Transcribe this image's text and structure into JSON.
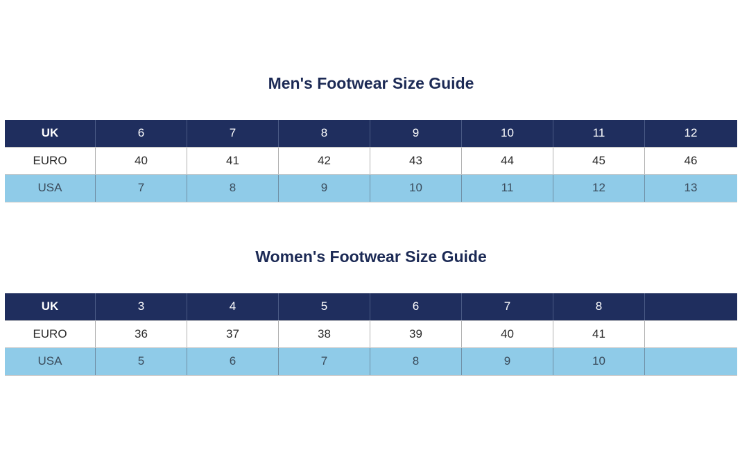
{
  "mens": {
    "title": "Men's Footwear Size Guide",
    "rows": [
      [
        "UK",
        "6",
        "7",
        "8",
        "9",
        "10",
        "11",
        "12"
      ],
      [
        "EURO",
        "40",
        "41",
        "42",
        "43",
        "44",
        "45",
        "46"
      ],
      [
        "USA",
        "7",
        "8",
        "9",
        "10",
        "11",
        "12",
        "13"
      ]
    ]
  },
  "womens": {
    "title": "Women's Footwear Size Guide",
    "rows": [
      [
        "UK",
        "3",
        "4",
        "5",
        "6",
        "7",
        "8"
      ],
      [
        "EURO",
        "36",
        "37",
        "38",
        "39",
        "40",
        "41"
      ],
      [
        "USA",
        "5",
        "6",
        "7",
        "8",
        "9",
        "10"
      ]
    ]
  }
}
